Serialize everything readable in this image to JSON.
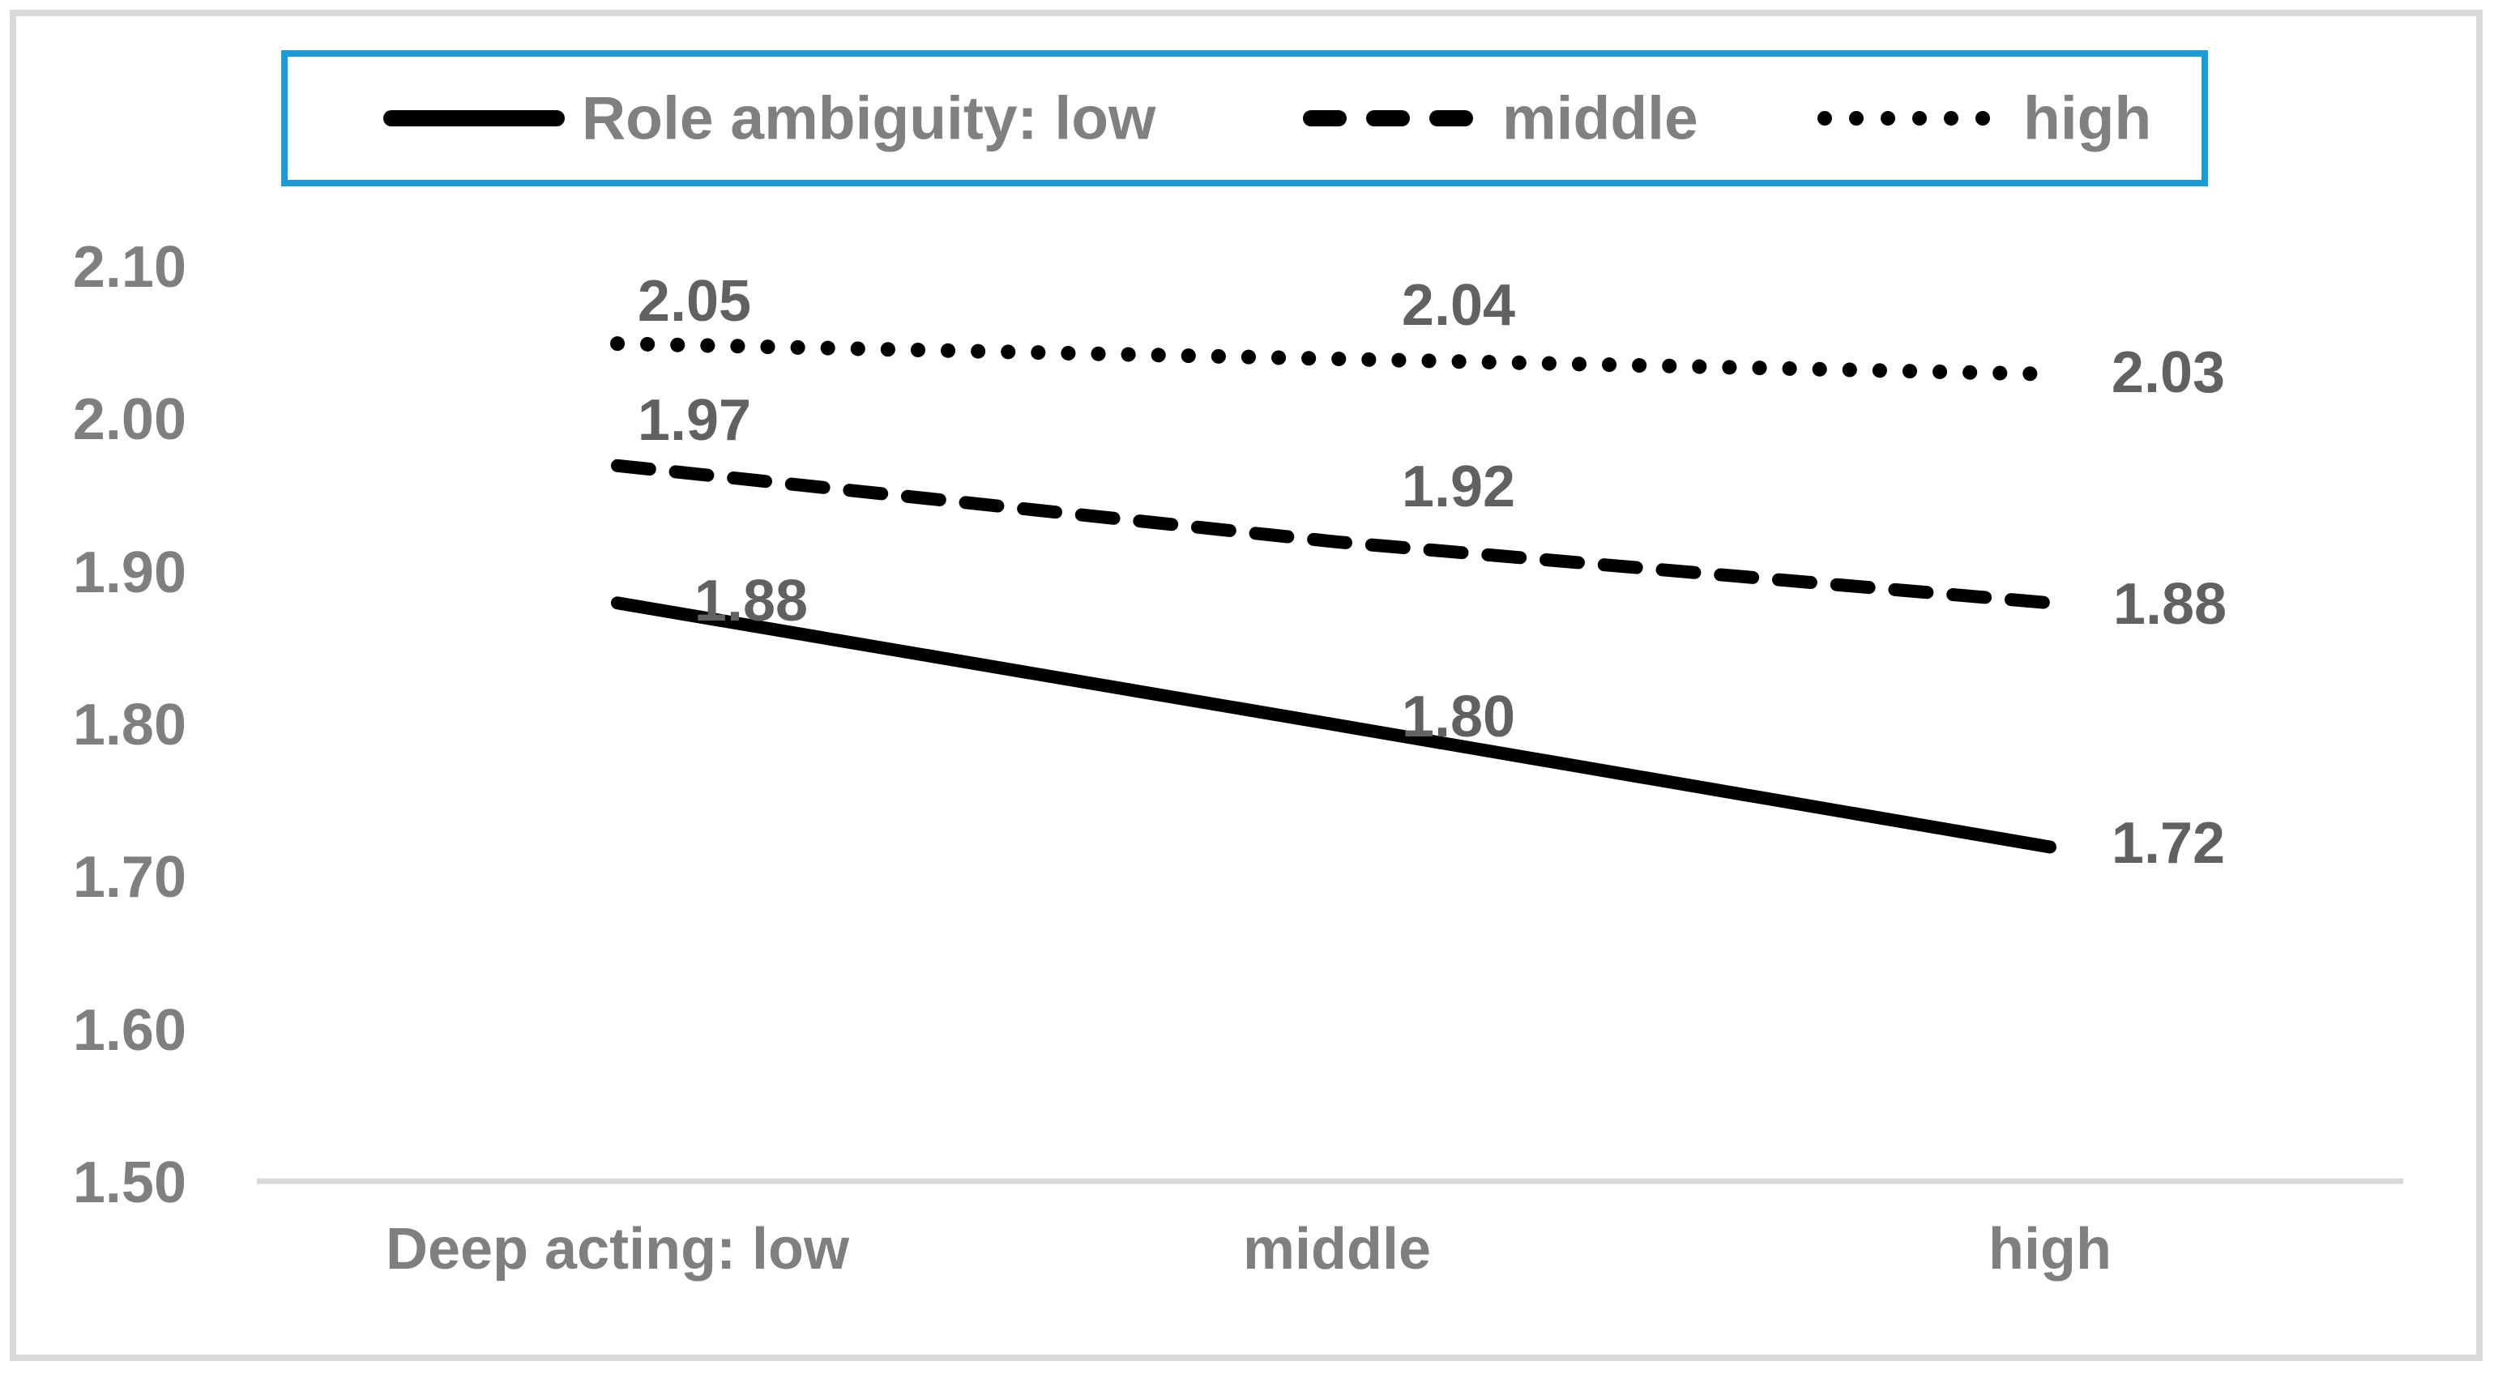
{
  "chart_data": {
    "type": "line",
    "title": "",
    "categories": [
      "Deep acting: low",
      "middle",
      "high"
    ],
    "series": [
      {
        "name": "Role ambiguity: low",
        "style": "solid",
        "values": [
          1.88,
          1.8,
          1.72
        ],
        "labels": [
          "1.88",
          "1.80",
          "1.72"
        ]
      },
      {
        "name": "middle",
        "style": "dashed",
        "values": [
          1.97,
          1.92,
          1.88
        ],
        "labels": [
          "1.97",
          "1.92",
          "1.88"
        ]
      },
      {
        "name": "high",
        "style": "dotted",
        "values": [
          2.05,
          2.04,
          2.03
        ],
        "labels": [
          "2.05",
          "2.04",
          "2.03"
        ]
      }
    ],
    "yticks": [
      "2.10",
      "2.00",
      "1.90",
      "1.80",
      "1.70",
      "1.60",
      "1.50"
    ],
    "ylim": [
      1.5,
      2.1
    ],
    "xlabel": "",
    "ylabel": "",
    "grid": false,
    "legend_position": "top",
    "colors": {
      "line": "#000000",
      "legend_border": "#1E9BD7",
      "axis_text": "#7F7F7F",
      "data_label_text": "#616161",
      "axis_line": "#D9D9D9",
      "figure_border": "#D9D9D9",
      "background": "#FFFFFF"
    }
  }
}
